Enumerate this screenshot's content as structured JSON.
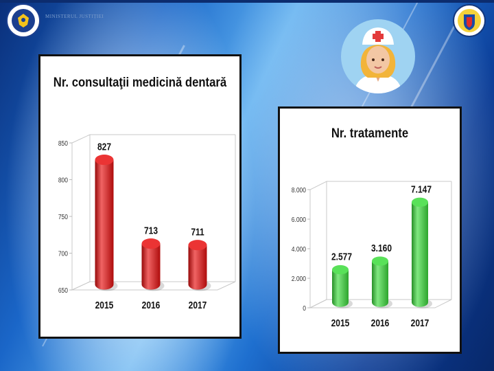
{
  "header": {
    "ministry_text": "Ministerul Justiției",
    "logo_left_icon": "government-romania-logo-icon",
    "logo_right_icon": "penitentiary-administration-crest-icon"
  },
  "illustration": {
    "icon": "nurse-avatar-icon"
  },
  "chart_data": [
    {
      "type": "bar",
      "style": "3d-cylinder",
      "title": "Nr. consultaţii medicină dentară",
      "categories": [
        "2015",
        "2016",
        "2017"
      ],
      "values": [
        827,
        713,
        711
      ],
      "data_labels": [
        "827",
        "713",
        "711"
      ],
      "ylim": [
        650,
        850
      ],
      "yticks": [
        650,
        700,
        750,
        800,
        850
      ],
      "ytick_labels": [
        "650",
        "700",
        "750",
        "800",
        "850"
      ],
      "xlabel": "",
      "ylabel": "",
      "grid": false,
      "legend": "none",
      "color": "#e81010"
    },
    {
      "type": "bar",
      "style": "3d-cylinder",
      "title": "Nr. tratamente",
      "categories": [
        "2015",
        "2016",
        "2017"
      ],
      "values": [
        2577,
        3160,
        7147
      ],
      "data_labels": [
        "2.577",
        "3.160",
        "7.147"
      ],
      "ylim": [
        0,
        8000
      ],
      "yticks": [
        0,
        2000,
        4000,
        6000,
        8000
      ],
      "ytick_labels": [
        "0",
        "2.000",
        "4.000",
        "6.000",
        "8.000"
      ],
      "xlabel": "",
      "ylabel": "",
      "grid": false,
      "legend": "none",
      "color": "#3cdc3c"
    }
  ]
}
